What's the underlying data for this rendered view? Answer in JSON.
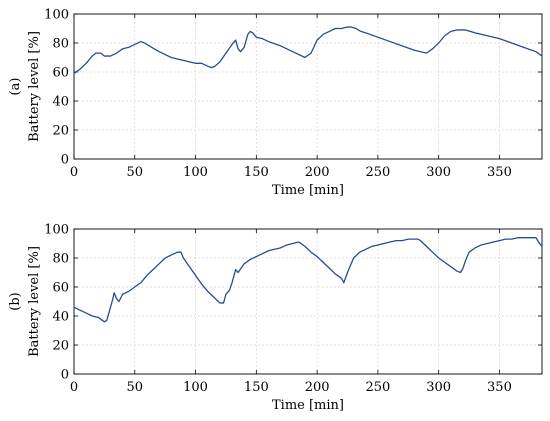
{
  "chart_data": [
    {
      "type": "line",
      "panel_label": "(a)",
      "xlabel": "Time [min]",
      "ylabel": "Battery level [%]",
      "xlim": [
        0,
        385
      ],
      "ylim": [
        0,
        100
      ],
      "xticks": [
        0,
        50,
        100,
        150,
        200,
        250,
        300,
        350
      ],
      "yticks": [
        0,
        20,
        40,
        60,
        80,
        100
      ],
      "grid": true,
      "line_color": "#2b4a96",
      "series": [
        {
          "x": [
            0,
            5,
            10,
            15,
            18,
            22,
            25,
            30,
            35,
            40,
            45,
            50,
            55,
            58,
            62,
            66,
            70,
            75,
            80,
            85,
            90,
            95,
            100,
            105,
            110,
            113,
            116,
            120,
            125,
            130,
            133,
            135,
            137,
            140,
            143,
            145,
            147,
            150,
            155,
            160,
            170,
            180,
            190,
            195,
            200,
            205,
            210,
            215,
            220,
            225,
            228,
            232,
            236,
            240,
            250,
            260,
            270,
            280,
            290,
            295,
            300,
            305,
            310,
            315,
            318,
            322,
            326,
            330,
            340,
            350,
            360,
            370,
            380,
            385
          ],
          "y": [
            59,
            62,
            66,
            71,
            73,
            73,
            71,
            71,
            73,
            76,
            77,
            79,
            81,
            80,
            78,
            76,
            74,
            72,
            70,
            69,
            68,
            67,
            66,
            66,
            64,
            63,
            64,
            67,
            73,
            79,
            82,
            76,
            74,
            77,
            86,
            88,
            87,
            84,
            83,
            81,
            78,
            74,
            70,
            73,
            82,
            86,
            88,
            90,
            90,
            91,
            91,
            90,
            88,
            87,
            84,
            81,
            78,
            75,
            73,
            76,
            80,
            85,
            88,
            89,
            89,
            89,
            88,
            87,
            85,
            83,
            80,
            77,
            74,
            71
          ]
        }
      ]
    },
    {
      "type": "line",
      "panel_label": "(b)",
      "xlabel": "Time [min]",
      "ylabel": "Battery level [%]",
      "xlim": [
        0,
        385
      ],
      "ylim": [
        0,
        100
      ],
      "xticks": [
        0,
        50,
        100,
        150,
        200,
        250,
        300,
        350
      ],
      "yticks": [
        0,
        20,
        40,
        60,
        80,
        100
      ],
      "grid": true,
      "line_color": "#2b4a96",
      "series": [
        {
          "x": [
            0,
            5,
            10,
            15,
            20,
            25,
            27,
            30,
            32,
            33,
            35,
            37,
            40,
            45,
            50,
            55,
            60,
            65,
            70,
            75,
            80,
            85,
            88,
            90,
            95,
            100,
            105,
            110,
            115,
            120,
            123,
            125,
            128,
            130,
            133,
            135,
            140,
            145,
            150,
            155,
            160,
            165,
            170,
            175,
            180,
            185,
            190,
            195,
            200,
            205,
            210,
            215,
            220,
            222,
            225,
            228,
            230,
            235,
            240,
            245,
            250,
            255,
            260,
            265,
            270,
            275,
            280,
            283,
            285,
            290,
            295,
            300,
            305,
            310,
            315,
            318,
            320,
            322,
            325,
            330,
            335,
            340,
            345,
            350,
            355,
            360,
            365,
            370,
            375,
            380,
            383,
            385
          ],
          "y": [
            46,
            44,
            42,
            40,
            39,
            36,
            37,
            46,
            52,
            56,
            52,
            50,
            55,
            57,
            60,
            63,
            68,
            72,
            76,
            80,
            82,
            84,
            84,
            80,
            74,
            68,
            62,
            57,
            53,
            49,
            49,
            55,
            58,
            63,
            72,
            70,
            76,
            79,
            81,
            83,
            85,
            86,
            87,
            89,
            90,
            91,
            88,
            84,
            81,
            77,
            73,
            69,
            66,
            63,
            70,
            76,
            80,
            84,
            86,
            88,
            89,
            90,
            91,
            92,
            92,
            93,
            93,
            93,
            92,
            88,
            84,
            80,
            77,
            74,
            71,
            70,
            73,
            78,
            84,
            87,
            89,
            90,
            91,
            92,
            93,
            93,
            94,
            94,
            94,
            94,
            90,
            88
          ]
        }
      ]
    }
  ]
}
